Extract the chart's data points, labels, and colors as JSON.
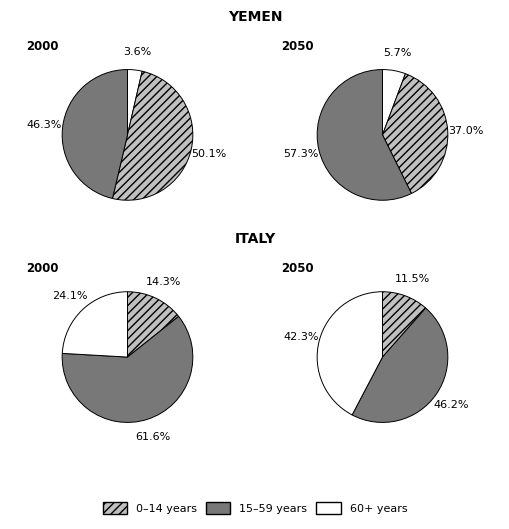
{
  "title_yemen": "YEMEN",
  "title_italy": "ITALY",
  "yemen_2000_slices": [
    {
      "value": 3.6,
      "label": "3.6%",
      "color": "#ffffff",
      "hatch": ""
    },
    {
      "value": 50.1,
      "label": "50.1%",
      "color": "#c0c0c0",
      "hatch": "////"
    },
    {
      "value": 46.3,
      "label": "46.3%",
      "color": "#787878",
      "hatch": ""
    }
  ],
  "yemen_2050_slices": [
    {
      "value": 5.7,
      "label": "5.7%",
      "color": "#ffffff",
      "hatch": ""
    },
    {
      "value": 37.0,
      "label": "37.0%",
      "color": "#c0c0c0",
      "hatch": "////"
    },
    {
      "value": 57.3,
      "label": "57.3%",
      "color": "#787878",
      "hatch": ""
    }
  ],
  "italy_2000_slices": [
    {
      "value": 14.3,
      "label": "14.3%",
      "color": "#c0c0c0",
      "hatch": "////"
    },
    {
      "value": 61.6,
      "label": "61.6%",
      "color": "#787878",
      "hatch": ""
    },
    {
      "value": 24.1,
      "label": "24.1%",
      "color": "#ffffff",
      "hatch": ""
    }
  ],
  "italy_2050_slices": [
    {
      "value": 11.5,
      "label": "11.5%",
      "color": "#c0c0c0",
      "hatch": "////"
    },
    {
      "value": 46.2,
      "label": "46.2%",
      "color": "#787878",
      "hatch": ""
    },
    {
      "value": 42.3,
      "label": "42.3%",
      "color": "#ffffff",
      "hatch": ""
    }
  ],
  "legend_labels": [
    "0–14 years",
    "15–59 years",
    "60+ years"
  ],
  "background_color": "#ffffff",
  "title_fontsize": 10,
  "label_fontsize": 8,
  "year_fontsize": 8.5
}
